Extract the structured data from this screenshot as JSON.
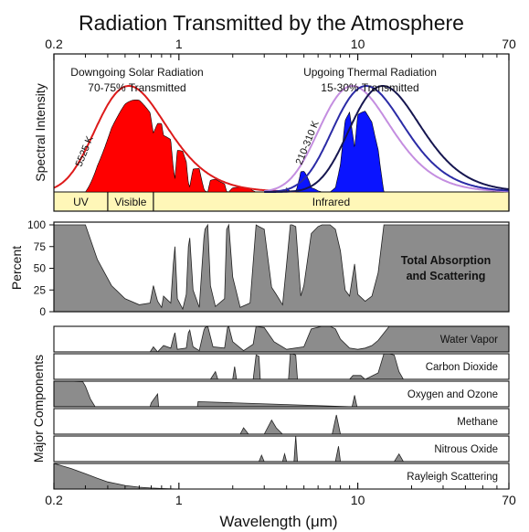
{
  "title": "Radiation Transmitted by the Atmosphere",
  "colors": {
    "solar_fill": "#ff0000",
    "solar_curve": "#dd1a1a",
    "thermal_fill": "#0a14ff",
    "thermal_curves": [
      "#c48ee0",
      "#2b2ba6",
      "#161650"
    ],
    "band_fill": "#fff7b8",
    "absorption_fill": "#8c8c8c"
  },
  "chart_data": [
    {
      "type": "area",
      "panel": "spectral_intensity",
      "ylabel": "Spectral Intensity",
      "x_scale": "log",
      "xlim": [
        0.2,
        70
      ],
      "top_tick_labels": [
        "0.2",
        "1",
        "10",
        "70"
      ],
      "annotations": {
        "solar_title": "Downgoing Solar Radiation",
        "solar_sub": "70-75% Transmitted",
        "thermal_title": "Upgoing Thermal Radiation",
        "thermal_sub": "15-30% Transmitted",
        "solar_temp": "5525 K",
        "thermal_temp": "210-310 K"
      },
      "bands": [
        {
          "label": "UV",
          "from": 0.2,
          "to": 0.4
        },
        {
          "label": "Visible",
          "from": 0.4,
          "to": 0.72
        },
        {
          "label": "Infrared",
          "from": 0.72,
          "to": 70
        }
      ],
      "series": [
        {
          "temperature_K": 5525,
          "peak_um": 0.525,
          "relative_height": 1.0
        },
        {
          "temperature_K": 310,
          "peak_um": 9.35,
          "relative_height": 1.0
        },
        {
          "temperature_K": 260,
          "peak_um": 11.2,
          "relative_height": 1.0
        },
        {
          "temperature_K": 210,
          "peak_um": 13.8,
          "relative_height": 1.0
        }
      ]
    },
    {
      "type": "area",
      "panel": "total_absorption",
      "ylabel": "Percent",
      "ylim": [
        0,
        100
      ],
      "yticks": [
        "100",
        "75",
        "50",
        "25",
        "0"
      ],
      "label": "Total Absorption and Scattering",
      "label_lines": [
        "Total Absorption",
        "and Scattering"
      ],
      "x": [
        0.2,
        0.3,
        0.35,
        0.42,
        0.5,
        0.6,
        0.69,
        0.72,
        0.76,
        0.8,
        0.82,
        0.9,
        0.93,
        0.95,
        0.98,
        1.05,
        1.1,
        1.13,
        1.15,
        1.2,
        1.3,
        1.38,
        1.4,
        1.45,
        1.5,
        1.6,
        1.8,
        1.85,
        1.9,
        2.0,
        2.2,
        2.5,
        2.7,
        2.8,
        3.0,
        3.3,
        3.5,
        3.8,
        4.0,
        4.2,
        4.3,
        4.5,
        4.8,
        5.0,
        5.5,
        6.0,
        6.3,
        7.0,
        7.5,
        8.0,
        8.5,
        9.0,
        9.6,
        10.0,
        11.0,
        12.0,
        13.0,
        14.0,
        15.0,
        17.0,
        20.0,
        25.0,
        30.0,
        50.0,
        70.0
      ],
      "values": [
        100,
        100,
        60,
        30,
        15,
        8,
        10,
        30,
        12,
        5,
        18,
        10,
        55,
        75,
        15,
        3,
        20,
        75,
        85,
        25,
        5,
        85,
        95,
        100,
        30,
        6,
        15,
        95,
        100,
        40,
        5,
        10,
        100,
        98,
        95,
        28,
        20,
        8,
        55,
        100,
        100,
        98,
        18,
        30,
        90,
        98,
        100,
        100,
        95,
        70,
        25,
        18,
        55,
        20,
        12,
        18,
        45,
        100,
        100,
        100,
        100,
        100,
        100,
        100,
        100
      ]
    },
    {
      "type": "area",
      "panel": "major_components",
      "ylabel": "Major Components",
      "xlabel": "Wavelength (μm)",
      "bottom_tick_labels": [
        "0.2",
        "1",
        "10",
        "70"
      ],
      "series": [
        {
          "name": "Water Vapor",
          "x": [
            0.2,
            0.6,
            0.69,
            0.72,
            0.76,
            0.82,
            0.9,
            0.93,
            0.95,
            0.98,
            1.1,
            1.13,
            1.15,
            1.2,
            1.3,
            1.38,
            1.4,
            1.45,
            1.55,
            1.8,
            1.87,
            1.9,
            2.0,
            2.3,
            2.6,
            2.7,
            2.8,
            3.0,
            3.4,
            4.0,
            5.0,
            5.5,
            6.3,
            7.0,
            7.5,
            8.0,
            9.0,
            10.0,
            11.0,
            12.0,
            13.0,
            15.0,
            17.0,
            20.0,
            25.0,
            70.0
          ],
          "values": [
            0,
            0,
            0,
            20,
            0,
            25,
            15,
            55,
            75,
            10,
            15,
            75,
            85,
            20,
            5,
            85,
            95,
            100,
            20,
            15,
            95,
            100,
            40,
            5,
            30,
            100,
            98,
            95,
            40,
            10,
            20,
            90,
            100,
            100,
            90,
            50,
            15,
            10,
            15,
            25,
            45,
            100,
            100,
            100,
            100,
            100
          ]
        },
        {
          "name": "Carbon Dioxide",
          "x": [
            0.2,
            1.5,
            1.6,
            1.65,
            2.0,
            2.05,
            2.1,
            2.6,
            2.7,
            2.8,
            2.85,
            4.1,
            4.2,
            4.3,
            4.5,
            4.6,
            9.0,
            9.4,
            10.4,
            11.0,
            13.0,
            14.0,
            15.0,
            16.0,
            17.0,
            18.0,
            70.0
          ],
          "values": [
            0,
            0,
            30,
            0,
            0,
            50,
            0,
            0,
            95,
            90,
            0,
            0,
            100,
            100,
            95,
            0,
            0,
            15,
            15,
            0,
            25,
            100,
            100,
            95,
            30,
            0,
            0
          ]
        },
        {
          "name": "Oxygen and Ozone",
          "x": [
            0.2,
            0.25,
            0.29,
            0.3,
            0.32,
            0.34,
            0.6,
            0.69,
            0.7,
            0.76,
            0.77,
            1.27,
            1.28,
            9.3,
            9.6,
            9.9,
            70.0
          ],
          "values": [
            100,
            100,
            98,
            80,
            30,
            0,
            0,
            0,
            15,
            50,
            0,
            0,
            20,
            0,
            45,
            0,
            0
          ]
        },
        {
          "name": "Methane",
          "x": [
            0.2,
            2.2,
            2.3,
            2.45,
            3.0,
            3.3,
            3.5,
            3.8,
            7.2,
            7.6,
            8.0,
            70.0
          ],
          "values": [
            0,
            0,
            25,
            0,
            0,
            55,
            25,
            0,
            0,
            75,
            0,
            0
          ]
        },
        {
          "name": "Nitrous Oxide",
          "x": [
            0.2,
            2.8,
            2.9,
            3.0,
            3.8,
            3.9,
            4.0,
            4.4,
            4.5,
            4.6,
            7.5,
            7.8,
            8.0,
            16.0,
            17.0,
            18.0,
            70.0
          ],
          "values": [
            0,
            0,
            25,
            0,
            0,
            30,
            0,
            0,
            100,
            0,
            0,
            60,
            0,
            0,
            30,
            0,
            0
          ]
        },
        {
          "name": "Rayleigh Scattering",
          "x": [
            0.2,
            0.25,
            0.3,
            0.35,
            0.4,
            0.5,
            0.6,
            0.7,
            0.8,
            1.0,
            1.3,
            70.0
          ],
          "values": [
            100,
            80,
            60,
            42,
            28,
            14,
            7,
            4,
            2,
            0,
            0,
            0
          ]
        }
      ]
    }
  ]
}
